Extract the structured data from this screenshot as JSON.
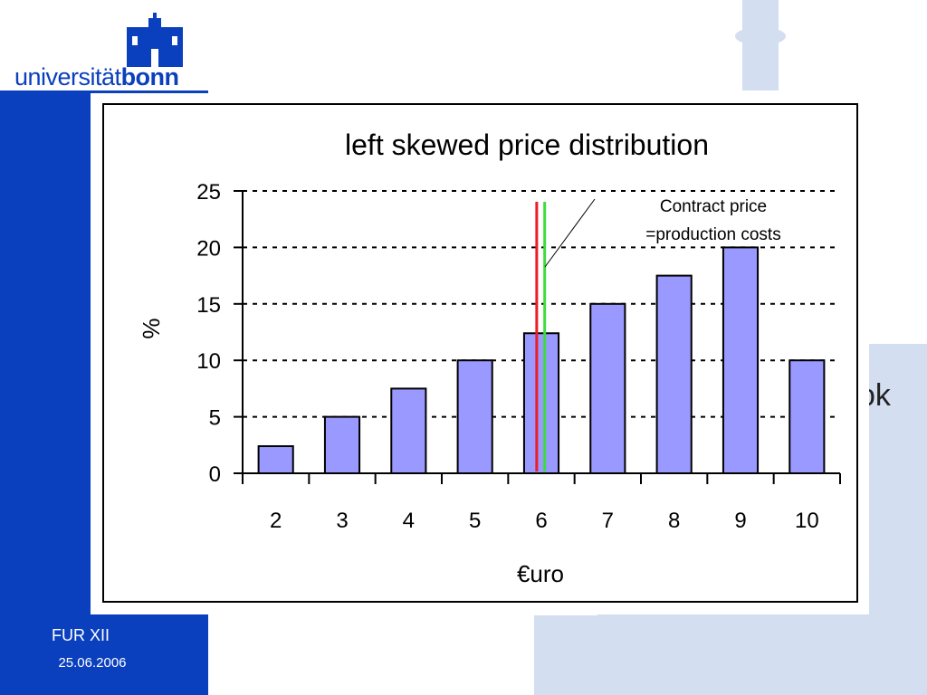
{
  "header": {
    "logo_text_regular": "universität",
    "logo_text_bold": "bonn"
  },
  "footer": {
    "event": "FUR XII",
    "date": "25.06.2006"
  },
  "slide": {
    "text_fragment": "ok"
  },
  "colors": {
    "sidebar": "#0a3fbe",
    "bar_fill": "#9999ff",
    "bar_stroke": "#000000",
    "line_red": "#ee1c25",
    "line_green": "#3ddc3d"
  },
  "chart_data": {
    "type": "bar",
    "title": "left skewed price distribution",
    "xlabel": "€uro",
    "ylabel": "%",
    "categories": [
      "2",
      "3",
      "4",
      "5",
      "6",
      "7",
      "8",
      "9",
      "10"
    ],
    "values": [
      2.4,
      5,
      7.5,
      10,
      12.4,
      15,
      17.5,
      20,
      10
    ],
    "ylim": [
      0,
      25
    ],
    "yticks": [
      "0",
      "5",
      "10",
      "15",
      "20",
      "25"
    ],
    "grid": "dashed horizontal",
    "annotation": {
      "lines": [
        "Contract price",
        "=production costs"
      ]
    },
    "vertical_lines": [
      {
        "color": "red",
        "x": 5.93
      },
      {
        "color": "green",
        "x": 6.05
      }
    ]
  }
}
